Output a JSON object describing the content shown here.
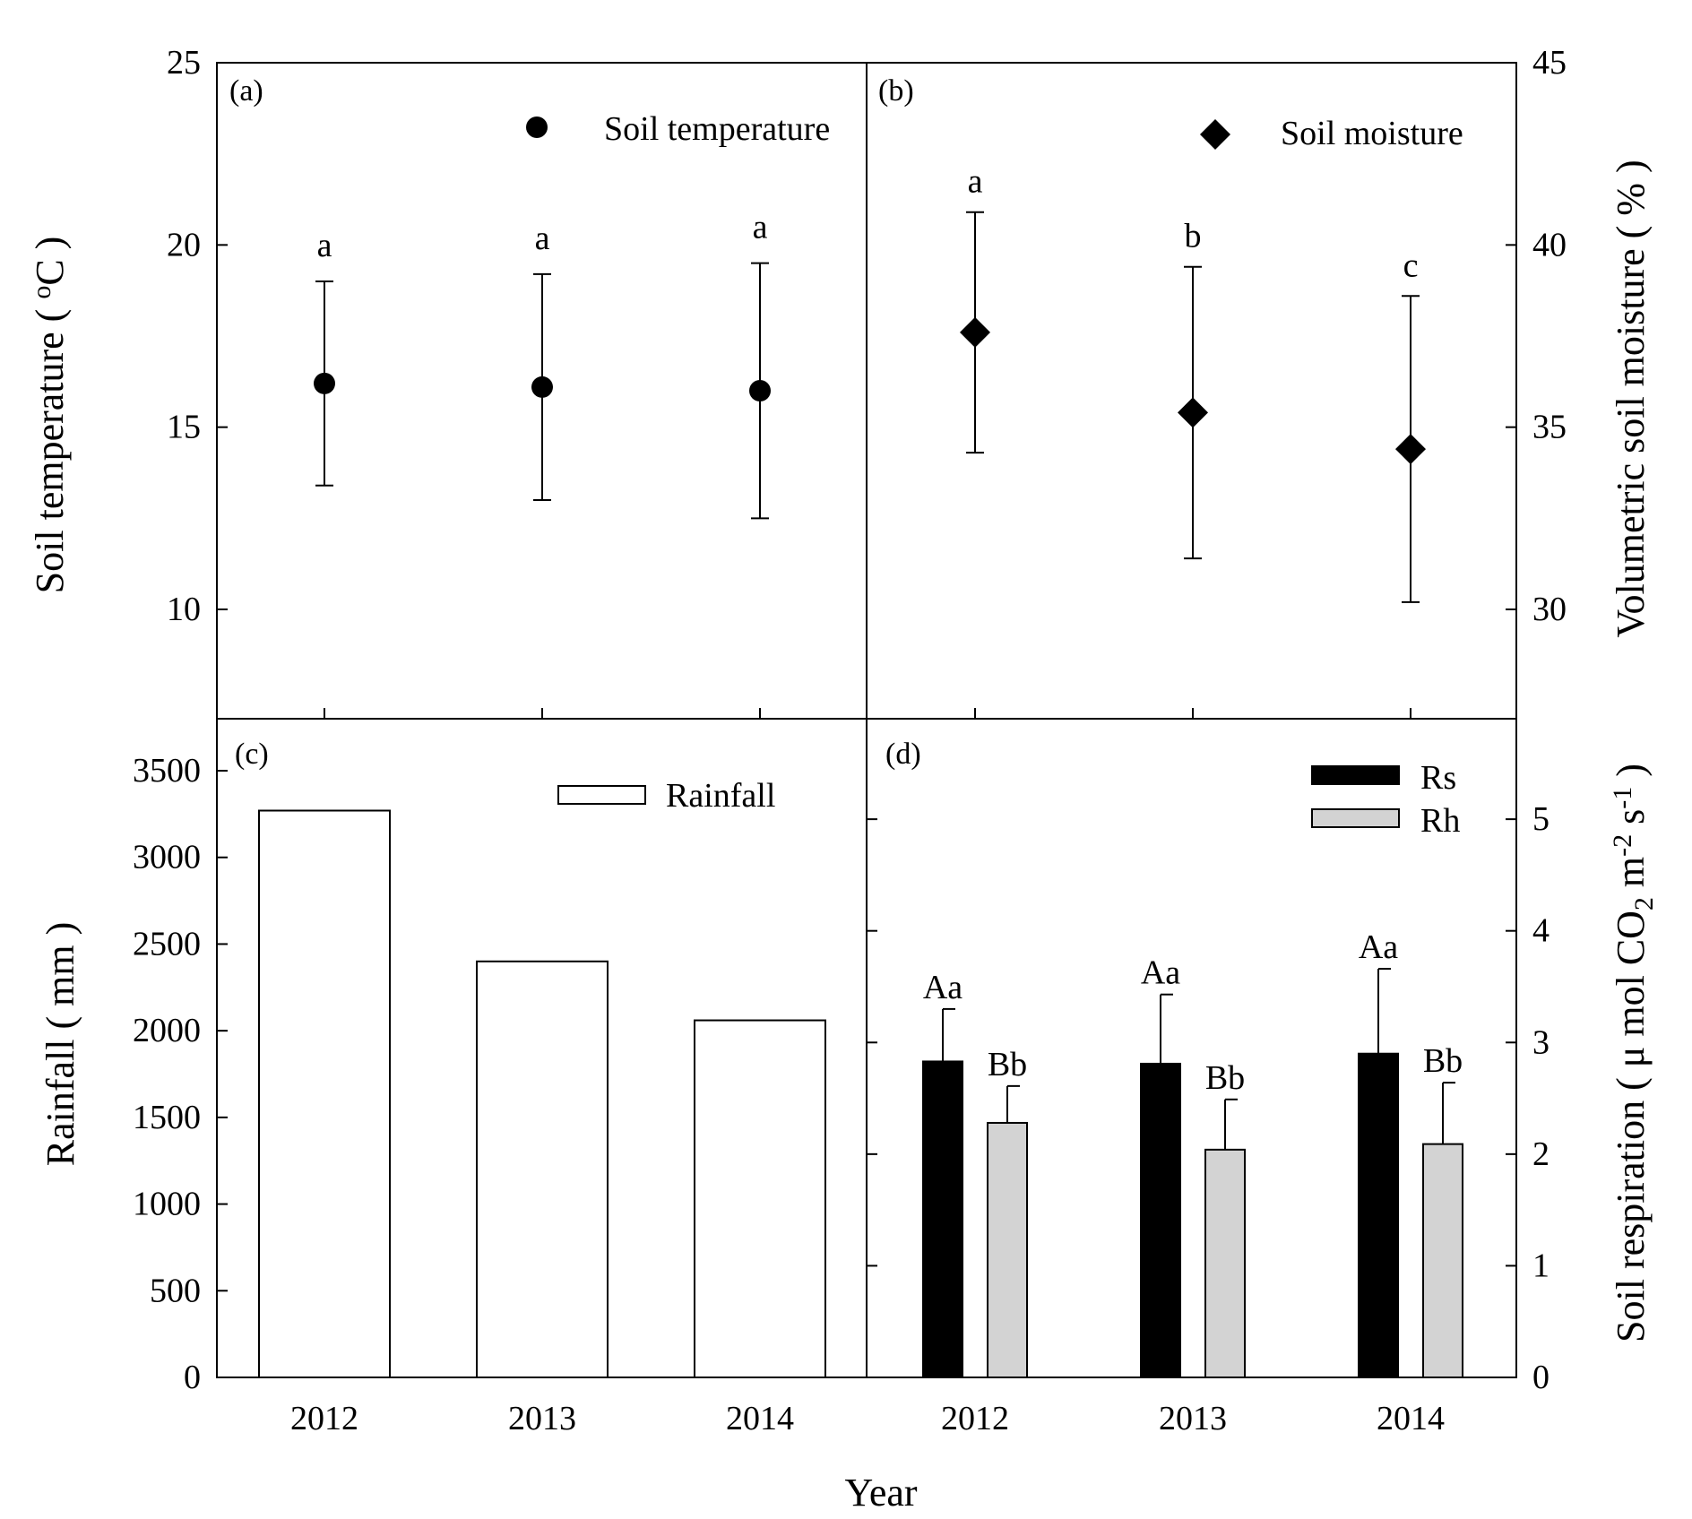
{
  "chart_data": [
    {
      "panel": "a",
      "type": "scatter",
      "panel_label": "(a)",
      "legend": "Soil temperature",
      "marker": "circle",
      "categories": [
        "2012",
        "2013",
        "2014"
      ],
      "values": [
        16.2,
        16.1,
        16.0
      ],
      "errors": [
        2.8,
        3.1,
        3.5
      ],
      "letters": [
        "a",
        "a",
        "a"
      ],
      "ylabel": "Soil temperature ( oC )",
      "ylabel_main": "Soil temperature ( ",
      "ylabel_sup": "o",
      "ylabel_unit": "C )",
      "ylim": [
        7,
        25
      ],
      "yticks": [
        "10",
        "15",
        "20",
        "25"
      ],
      "axis_side": "left"
    },
    {
      "panel": "b",
      "type": "scatter",
      "panel_label": "(b)",
      "legend": "Soil moisture",
      "marker": "diamond",
      "categories": [
        "2012",
        "2013",
        "2014"
      ],
      "values": [
        37.6,
        35.4,
        34.4
      ],
      "errors": [
        3.3,
        4.0,
        4.2
      ],
      "letters": [
        "a",
        "b",
        "c"
      ],
      "ylabel": "Volumetric soil moisture ( % )",
      "ylim": [
        27,
        45
      ],
      "yticks": [
        "30",
        "35",
        "40",
        "45"
      ],
      "axis_side": "right"
    },
    {
      "panel": "c",
      "type": "bar",
      "panel_label": "(c)",
      "legend": "Rainfall",
      "categories": [
        "2012",
        "2013",
        "2014"
      ],
      "values": [
        3270,
        2400,
        2060
      ],
      "ylabel": "Rainfall ( mm )",
      "ylim": [
        0,
        3800
      ],
      "yticks": [
        "0",
        "500",
        "1000",
        "1500",
        "2000",
        "2500",
        "3000",
        "3500"
      ],
      "xlabel": "2012 2013 2014",
      "axis_side": "left"
    },
    {
      "panel": "d",
      "type": "bar",
      "panel_label": "(d)",
      "categories": [
        "2012",
        "2013",
        "2014"
      ],
      "series": [
        {
          "name": "Rs",
          "values": [
            2.83,
            2.81,
            2.9
          ],
          "errors": [
            0.47,
            0.62,
            0.76
          ],
          "letters": [
            "Aa",
            "Aa",
            "Aa"
          ],
          "color": "#000000"
        },
        {
          "name": "Rh",
          "values": [
            2.28,
            2.04,
            2.09
          ],
          "errors": [
            0.33,
            0.45,
            0.55
          ],
          "letters": [
            "Bb",
            "Bb",
            "Bb"
          ],
          "color": "#d3d3d3"
        }
      ],
      "ylabel": "Soil respiration ( μ mol CO2 m-2 s-1 )",
      "ylabel_parts": [
        "Soil respiration ( μ mol CO",
        "2",
        " m",
        "-2",
        " s",
        "-1",
        " )"
      ],
      "ylim": [
        0,
        5.9
      ],
      "yticks": [
        "0",
        "1",
        "2",
        "3",
        "4",
        "5"
      ],
      "axis_side": "right"
    }
  ],
  "xaxis": {
    "title": "Year",
    "ticks": [
      "2012",
      "2013",
      "2014"
    ]
  },
  "colors": {
    "axis": "#000000",
    "rs_bar": "#000000",
    "rh_bar": "#d3d3d3",
    "rain_bar": "#ffffff"
  }
}
